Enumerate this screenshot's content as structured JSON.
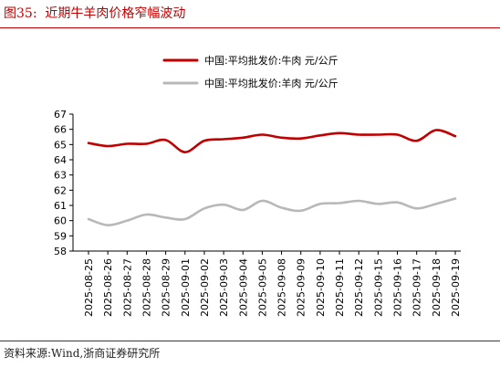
{
  "header": {
    "figure_title": "图35:  近期牛羊肉价格窄幅波动"
  },
  "footer": {
    "source": "资料来源:Wind,浙商证券研究所"
  },
  "colors": {
    "title": "#c00000",
    "beef": "#c00000",
    "lamb": "#b8b8b8",
    "axis": "#000000"
  },
  "chart_data": {
    "type": "line",
    "title": "",
    "xlabel": "",
    "ylabel": "",
    "ylim": [
      58,
      67
    ],
    "yticks": [
      58,
      59,
      60,
      61,
      62,
      63,
      64,
      65,
      66,
      67
    ],
    "grid": false,
    "legend_position": "top-center",
    "x": [
      "2025-08-25",
      "2025-08-26",
      "2025-08-27",
      "2025-08-28",
      "2025-08-29",
      "2025-09-01",
      "2025-09-02",
      "2025-09-03",
      "2025-09-04",
      "2025-09-05",
      "2025-09-08",
      "2025-09-09",
      "2025-09-10",
      "2025-09-11",
      "2025-09-12",
      "2025-09-15",
      "2025-09-16",
      "2025-09-17",
      "2025-09-18",
      "2025-09-19"
    ],
    "series": [
      {
        "name": "中国:平均批发价:牛肉 元/公斤",
        "color": "#c00000",
        "values": [
          65.1,
          64.9,
          65.05,
          65.05,
          65.3,
          64.5,
          65.25,
          65.35,
          65.45,
          65.65,
          65.45,
          65.4,
          65.6,
          65.75,
          65.65,
          65.65,
          65.65,
          65.25,
          65.95,
          65.55
        ]
      },
      {
        "name": "中国:平均批发价:羊肉 元/公斤",
        "color": "#b8b8b8",
        "values": [
          60.1,
          59.7,
          60.0,
          60.4,
          60.2,
          60.1,
          60.8,
          61.05,
          60.7,
          61.3,
          60.85,
          60.65,
          61.1,
          61.15,
          61.3,
          61.1,
          61.2,
          60.8,
          61.1,
          61.45
        ]
      }
    ]
  }
}
